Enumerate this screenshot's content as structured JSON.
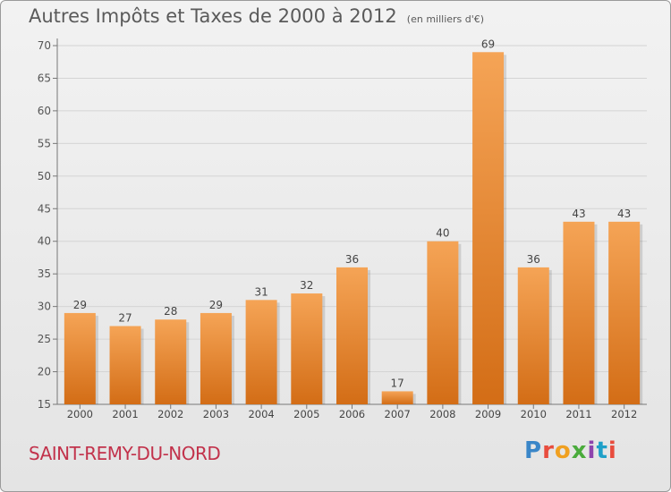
{
  "header": {
    "title": "Autres Impôts et Taxes de 2000 à 2012",
    "subtitle": "(en milliers d'€)"
  },
  "footer": {
    "city": "SAINT-REMY-DU-NORD",
    "brand": "Proxiti",
    "brand_colors": [
      "#3a86c8",
      "#e84c3d",
      "#f0a020",
      "#4aab3c",
      "#8e44ad",
      "#1fa0c8",
      "#e84c3d"
    ]
  },
  "colors": {
    "bar_top": "#f5a456",
    "bar_bottom": "#d36d16",
    "title": "#5a5a5a",
    "city": "#c2324b"
  },
  "chart_data": {
    "type": "bar",
    "categories": [
      "2000",
      "2001",
      "2002",
      "2003",
      "2004",
      "2005",
      "2006",
      "2007",
      "2008",
      "2009",
      "2010",
      "2011",
      "2012"
    ],
    "values": [
      29,
      27,
      28,
      29,
      31,
      32,
      36,
      17,
      40,
      69,
      36,
      43,
      43
    ],
    "title": "Autres Impôts et Taxes de 2000 à 2012",
    "subtitle": "(en milliers d'€)",
    "xlabel": "",
    "ylabel": "",
    "ylim": [
      15,
      70
    ],
    "yticks": [
      15,
      20,
      25,
      30,
      35,
      40,
      45,
      50,
      55,
      60,
      65,
      70
    ],
    "grid": true,
    "data_labels": true
  }
}
